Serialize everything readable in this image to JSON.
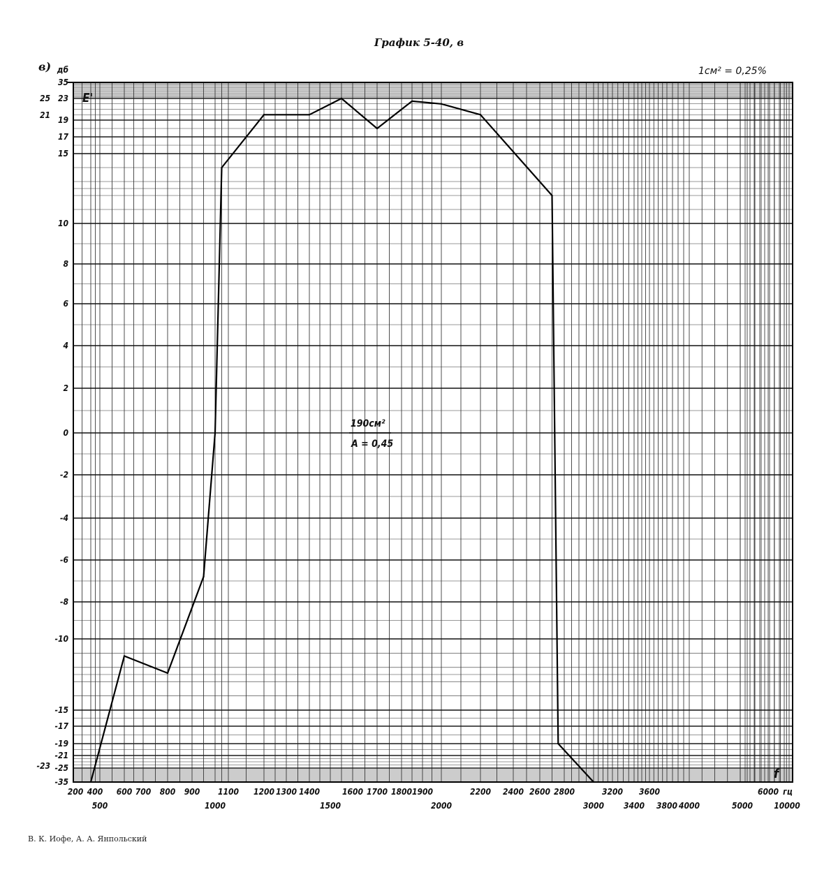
{
  "page": {
    "title": "График 5-40, в",
    "panel_label": "в)",
    "scale_note": "1см² = 0,25%",
    "footer": "В. К. Иофе, А. А. Янпольский"
  },
  "chart_data": {
    "type": "line",
    "title": "График 5-40, в",
    "ylabel": "E'",
    "ylabel_unit": "дб",
    "xlabel": "f",
    "xlabel_unit": "гц",
    "x_scale": "custom (piecewise, non-linear)",
    "ylim": [
      -35,
      35
    ],
    "y_scale": "non-linear, compressed above 15 and below -15",
    "grid": true,
    "annotations": [
      "190см²",
      "A = 0,45"
    ],
    "x_ticks_upper": [
      "200",
      "400",
      "600",
      "700",
      "800",
      "900",
      "1100",
      "1200",
      "1300",
      "1400",
      "1600",
      "1700",
      "1800",
      "1900",
      "2200",
      "2400",
      "2600",
      "2800",
      "3200",
      "3600",
      "6000",
      "гц"
    ],
    "x_ticks_lower": [
      "500",
      "1000",
      "1500",
      "2000",
      "3000",
      "3400",
      "3800",
      "4000",
      "5000",
      "10000"
    ],
    "y_ticks_left": [
      "дб",
      "35",
      "23",
      "19",
      "17",
      "15",
      "10",
      "8",
      "6",
      "4",
      "2",
      "0",
      "-2",
      "-4",
      "-6",
      "-8",
      "-10",
      "-15",
      "-17",
      "-19",
      "-21",
      "-25",
      "-35"
    ],
    "y_ticks_far_left": [
      "25",
      "21",
      "-23"
    ],
    "series": [
      {
        "x": [
          400,
          600,
          800,
          950,
          1000,
          1050,
          1200,
          1400,
          1550,
          1700,
          1850,
          2000,
          2200,
          2700,
          2750,
          3000
        ],
        "y": [
          -35,
          -11.2,
          -12.4,
          -6.8,
          0,
          14,
          20,
          20,
          23,
          18,
          22.5,
          22,
          20,
          12,
          -19,
          -35
        ]
      }
    ]
  }
}
